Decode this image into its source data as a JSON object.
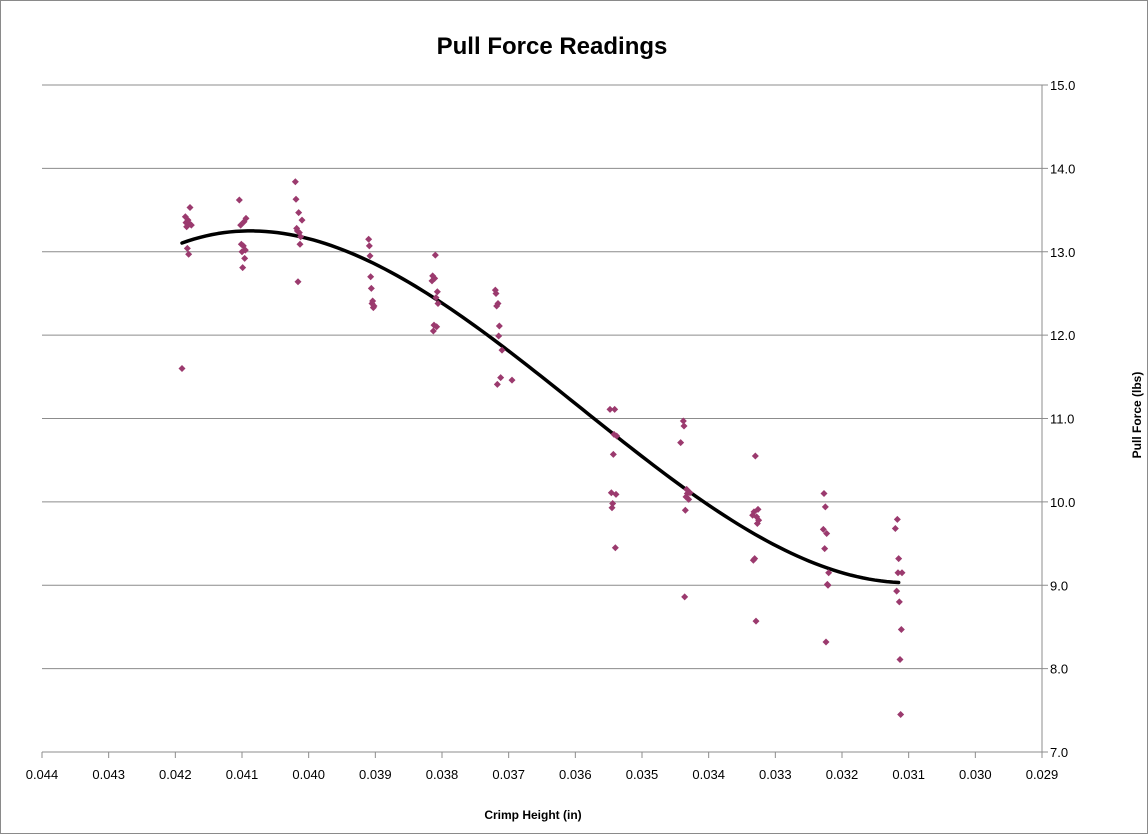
{
  "chart_data": {
    "type": "scatter",
    "title": "Pull Force Readings",
    "xlabel": "Crimp Height (in)",
    "ylabel": "Pull Force (lbs)",
    "x_reversed": true,
    "xlim": [
      0.029,
      0.044
    ],
    "ylim": [
      7.0,
      15.0
    ],
    "x_ticks": [
      "0.044",
      "0.043",
      "0.042",
      "0.041",
      "0.040",
      "0.039",
      "0.038",
      "0.037",
      "0.036",
      "0.035",
      "0.034",
      "0.033",
      "0.032",
      "0.031",
      "0.030",
      "0.029"
    ],
    "x_tick_values": [
      0.044,
      0.043,
      0.042,
      0.041,
      0.04,
      0.039,
      0.038,
      0.037,
      0.036,
      0.035,
      0.034,
      0.033,
      0.032,
      0.031,
      0.03,
      0.029
    ],
    "y_ticks": [
      "7.0",
      "8.0",
      "9.0",
      "10.0",
      "11.0",
      "12.0",
      "13.0",
      "14.0",
      "15.0"
    ],
    "y_tick_values": [
      7,
      8,
      9,
      10,
      11,
      12,
      13,
      14,
      15
    ],
    "y_axis_side": "right",
    "grid": "horizontal",
    "legend": "none",
    "colors": {
      "points": "#9b3a6e",
      "trend": "#000000",
      "grid": "#8c8c8c"
    },
    "series": [
      {
        "marker": "diamond",
        "points": [
          [
            0.0419,
            11.6
          ],
          [
            0.04185,
            13.42
          ],
          [
            0.04184,
            13.35
          ],
          [
            0.04183,
            13.3
          ],
          [
            0.04182,
            13.04
          ],
          [
            0.04181,
            13.38
          ],
          [
            0.0418,
            12.97
          ],
          [
            0.04179,
            13.34
          ],
          [
            0.04178,
            13.53
          ],
          [
            0.04176,
            13.32
          ],
          [
            0.04104,
            13.62
          ],
          [
            0.04102,
            13.32
          ],
          [
            0.04101,
            13.09
          ],
          [
            0.041,
            13.0
          ],
          [
            0.04099,
            12.81
          ],
          [
            0.04098,
            13.07
          ],
          [
            0.04097,
            13.36
          ],
          [
            0.04096,
            12.92
          ],
          [
            0.04095,
            13.02
          ],
          [
            0.04094,
            13.4
          ],
          [
            0.0402,
            13.84
          ],
          [
            0.04019,
            13.63
          ],
          [
            0.04018,
            13.28
          ],
          [
            0.04017,
            13.25
          ],
          [
            0.04016,
            12.64
          ],
          [
            0.04015,
            13.47
          ],
          [
            0.04014,
            13.23
          ],
          [
            0.04013,
            13.09
          ],
          [
            0.04012,
            13.18
          ],
          [
            0.0401,
            13.38
          ],
          [
            0.0391,
            13.15
          ],
          [
            0.03909,
            13.07
          ],
          [
            0.03908,
            12.95
          ],
          [
            0.03907,
            12.7
          ],
          [
            0.03906,
            12.56
          ],
          [
            0.03905,
            12.38
          ],
          [
            0.03904,
            12.41
          ],
          [
            0.03903,
            12.33
          ],
          [
            0.03902,
            12.35
          ],
          [
            0.03815,
            12.65
          ],
          [
            0.03814,
            12.71
          ],
          [
            0.03813,
            12.05
          ],
          [
            0.03812,
            12.12
          ],
          [
            0.03811,
            12.68
          ],
          [
            0.0381,
            12.96
          ],
          [
            0.03809,
            12.45
          ],
          [
            0.03808,
            12.1
          ],
          [
            0.03807,
            12.52
          ],
          [
            0.03806,
            12.38
          ],
          [
            0.0372,
            12.54
          ],
          [
            0.03719,
            12.5
          ],
          [
            0.03718,
            12.35
          ],
          [
            0.03717,
            11.41
          ],
          [
            0.03716,
            12.38
          ],
          [
            0.03715,
            11.99
          ],
          [
            0.03714,
            12.11
          ],
          [
            0.03712,
            11.49
          ],
          [
            0.0371,
            11.82
          ],
          [
            0.03695,
            11.46
          ],
          [
            0.03548,
            11.11
          ],
          [
            0.03546,
            10.11
          ],
          [
            0.03545,
            9.93
          ],
          [
            0.03544,
            9.98
          ],
          [
            0.03543,
            10.57
          ],
          [
            0.03542,
            10.81
          ],
          [
            0.03541,
            11.11
          ],
          [
            0.0354,
            9.45
          ],
          [
            0.03539,
            10.09
          ],
          [
            0.03538,
            10.79
          ],
          [
            0.03442,
            10.71
          ],
          [
            0.03438,
            10.97
          ],
          [
            0.03437,
            10.91
          ],
          [
            0.03436,
            8.86
          ],
          [
            0.03435,
            9.9
          ],
          [
            0.03434,
            10.06
          ],
          [
            0.03433,
            10.15
          ],
          [
            0.03432,
            10.1
          ],
          [
            0.0343,
            10.03
          ],
          [
            0.03428,
            10.11
          ],
          [
            0.03334,
            9.84
          ],
          [
            0.03333,
            9.3
          ],
          [
            0.03332,
            9.88
          ],
          [
            0.03331,
            9.32
          ],
          [
            0.0333,
            10.55
          ],
          [
            0.03329,
            8.57
          ],
          [
            0.03328,
            9.82
          ],
          [
            0.03327,
            9.74
          ],
          [
            0.03326,
            9.91
          ],
          [
            0.03325,
            9.78
          ],
          [
            0.03228,
            9.67
          ],
          [
            0.03227,
            10.1
          ],
          [
            0.03226,
            9.44
          ],
          [
            0.03225,
            9.94
          ],
          [
            0.03224,
            8.32
          ],
          [
            0.03223,
            9.62
          ],
          [
            0.03222,
            9.01
          ],
          [
            0.03221,
            9.0
          ],
          [
            0.0322,
            9.15
          ],
          [
            0.0312,
            9.68
          ],
          [
            0.03118,
            8.93
          ],
          [
            0.03117,
            9.79
          ],
          [
            0.03116,
            9.15
          ],
          [
            0.03115,
            9.32
          ],
          [
            0.03114,
            8.8
          ],
          [
            0.03113,
            8.11
          ],
          [
            0.03112,
            7.45
          ],
          [
            0.03111,
            8.47
          ],
          [
            0.0311,
            9.15
          ]
        ]
      }
    ],
    "trendline": {
      "type": "polynomial-3",
      "x_start": 0.0419,
      "x_end": 0.03115,
      "points": [
        [
          0.0419,
          13.12
        ],
        [
          0.041,
          13.23
        ],
        [
          0.04,
          13.13
        ],
        [
          0.039,
          12.85
        ],
        [
          0.038,
          12.44
        ],
        [
          0.037,
          11.84
        ],
        [
          0.036,
          11.14
        ],
        [
          0.035,
          10.49
        ],
        [
          0.034,
          9.96
        ],
        [
          0.033,
          9.52
        ],
        [
          0.032,
          9.17
        ],
        [
          0.03115,
          9.01
        ]
      ]
    }
  }
}
